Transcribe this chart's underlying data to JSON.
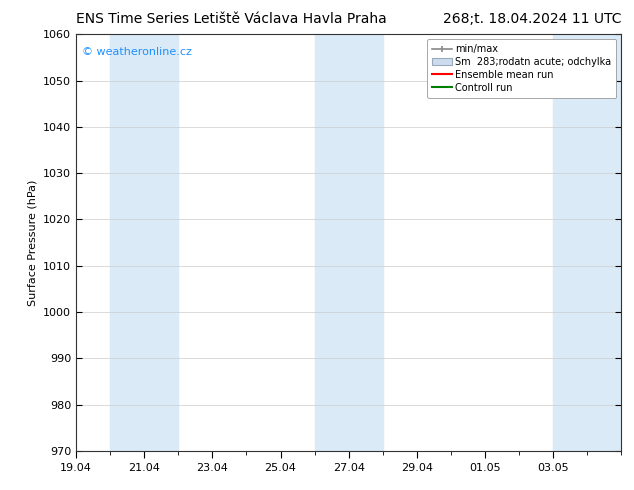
{
  "title_left": "ENS Time Series Letiště Václava Havla Praha",
  "title_right": "268;t. 18.04.2024 11 UTC",
  "ylabel": "Surface Pressure (hPa)",
  "ylim": [
    970,
    1060
  ],
  "yticks": [
    970,
    980,
    990,
    1000,
    1010,
    1020,
    1030,
    1040,
    1050,
    1060
  ],
  "xtick_labels": [
    "19.04",
    "21.04",
    "23.04",
    "25.04",
    "27.04",
    "29.04",
    "01.05",
    "03.05"
  ],
  "xtick_positions": [
    0,
    2,
    4,
    6,
    8,
    10,
    12,
    14
  ],
  "total_days": 16,
  "shaded_bands": [
    {
      "start": 1,
      "end": 3
    },
    {
      "start": 7,
      "end": 9
    },
    {
      "start": 14,
      "end": 16
    }
  ],
  "shaded_color": "#daeaf7",
  "watermark_text": "© weatheronline.cz",
  "watermark_color": "#1e90ff",
  "bg_color": "#ffffff",
  "plot_bg_color": "#ffffff",
  "title_fontsize": 10,
  "tick_fontsize": 8,
  "ylabel_fontsize": 8,
  "legend_fontsize": 7
}
